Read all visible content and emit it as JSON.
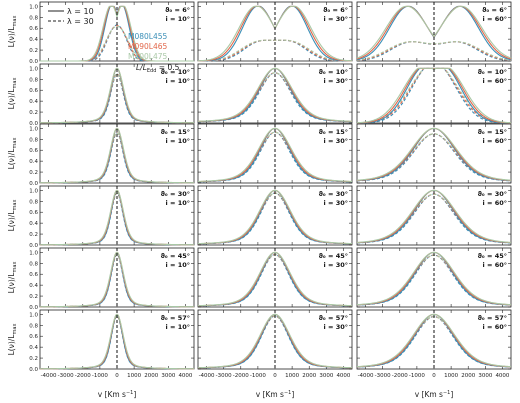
{
  "figure": {
    "ylabel_main": "L(ν)/L",
    "ylabel_sub": "max",
    "xlabel": "v [Km s",
    "xlabel_sup": "−1",
    "xlabel_end": "]"
  },
  "legend": {
    "line_styles": [
      {
        "label": "λ = 10",
        "style": "solid"
      },
      {
        "label": "λ = 30",
        "style": "dashed"
      }
    ],
    "models": [
      {
        "label": "M080L455",
        "color": "#3a8fb7"
      },
      {
        "label": "M090L465",
        "color": "#e2674a"
      },
      {
        "label": "M100L475",
        "color": "#a9c8a6"
      }
    ],
    "ratio_label": "L/L",
    "ratio_sub": "Edd",
    "ratio_value": " = 0.5"
  },
  "chart_data": {
    "type": "line",
    "description_of_grid": "6 rows (theta0) x 3 columns (inclination i)",
    "x_ticks": [
      -4000,
      -3000,
      -2000,
      -1000,
      0,
      1000,
      2000,
      3000,
      4000
    ],
    "x_tick_labels": [
      "-4000",
      "-3000",
      "-2000",
      "-1000",
      "0",
      "1000",
      "2000",
      "3000",
      "4000"
    ],
    "xlim": [
      -4500,
      4500
    ],
    "y_ticks": [
      0.0,
      0.2,
      0.4,
      0.6,
      0.8,
      1.0
    ],
    "y_tick_labels": [
      "0.0",
      "0.2",
      "0.4",
      "0.6",
      "0.8",
      "1.0"
    ],
    "ylim": [
      0.0,
      1.08
    ],
    "vertical_line_x": 0,
    "rows": [
      {
        "theta0_label": "ϑ₀ = 6°",
        "theta0": 6
      },
      {
        "theta0_label": "ϑ₀ = 10°",
        "theta0": 10
      },
      {
        "theta0_label": "ϑ₀ = 15°",
        "theta0": 15
      },
      {
        "theta0_label": "ϑ₀ = 30°",
        "theta0": 30
      },
      {
        "theta0_label": "ϑ₀ = 45°",
        "theta0": 45
      },
      {
        "theta0_label": "ϑ₀ = 57°",
        "theta0": 57
      }
    ],
    "columns": [
      {
        "incl_label": "i = 10°",
        "incl": 10
      },
      {
        "incl_label": "i = 30°",
        "incl": 30
      },
      {
        "incl_label": "i = 60°",
        "incl": 60
      }
    ],
    "series_colors": [
      "#3a8fb7",
      "#e2674a",
      "#a9c8a6"
    ],
    "panels": [
      {
        "row": 0,
        "col": 0,
        "profile": "double",
        "sep": [
          300,
          330,
          360
        ],
        "width": [
          420,
          440,
          460
        ],
        "dashed_peak": 0.62,
        "dashed_trough": 0.45
      },
      {
        "row": 0,
        "col": 1,
        "profile": "double",
        "sep": [
          1000,
          1050,
          1100
        ],
        "width": [
          900,
          950,
          1000
        ],
        "dashed_peak": 0.48,
        "dashed_trough": 0.42
      },
      {
        "row": 0,
        "col": 2,
        "profile": "double",
        "sep": [
          1500,
          1550,
          1600
        ],
        "width": [
          1100,
          1150,
          1200
        ],
        "dashed_peak": 0.5,
        "dashed_trough": 0.43
      },
      {
        "row": 1,
        "col": 0,
        "profile": "single",
        "width": [
          350,
          370,
          390
        ],
        "dashed_peak": 0.9
      },
      {
        "row": 1,
        "col": 1,
        "profile": "single",
        "width": [
          900,
          950,
          1000
        ],
        "dashed_peak": 0.92
      },
      {
        "row": 1,
        "col": 2,
        "profile": "double",
        "sep": [
          500,
          550,
          600
        ],
        "width": [
          1100,
          1150,
          1200
        ],
        "dashed_peak": 0.9,
        "dashed_trough": 0.82
      },
      {
        "row": 2,
        "col": 0,
        "profile": "single",
        "width": [
          340,
          360,
          380
        ],
        "dashed_peak": 0.92
      },
      {
        "row": 2,
        "col": 1,
        "profile": "single",
        "width": [
          850,
          900,
          950
        ],
        "dashed_peak": 0.93
      },
      {
        "row": 2,
        "col": 2,
        "profile": "single",
        "width": [
          1200,
          1250,
          1300
        ],
        "dashed_peak": 0.9
      },
      {
        "row": 3,
        "col": 0,
        "profile": "single",
        "width": [
          330,
          350,
          370
        ],
        "dashed_peak": 0.95
      },
      {
        "row": 3,
        "col": 1,
        "profile": "single",
        "width": [
          820,
          860,
          900
        ],
        "dashed_peak": 0.95
      },
      {
        "row": 3,
        "col": 2,
        "profile": "single",
        "width": [
          1150,
          1200,
          1250
        ],
        "dashed_peak": 0.93
      },
      {
        "row": 4,
        "col": 0,
        "profile": "single",
        "width": [
          330,
          350,
          370
        ],
        "dashed_peak": 0.96
      },
      {
        "row": 4,
        "col": 1,
        "profile": "single",
        "width": [
          800,
          840,
          880
        ],
        "dashed_peak": 0.96
      },
      {
        "row": 4,
        "col": 2,
        "profile": "single",
        "width": [
          1100,
          1150,
          1200
        ],
        "dashed_peak": 0.95
      },
      {
        "row": 5,
        "col": 0,
        "profile": "single",
        "width": [
          320,
          340,
          360
        ],
        "dashed_peak": 0.97
      },
      {
        "row": 5,
        "col": 1,
        "profile": "single",
        "width": [
          780,
          820,
          860
        ],
        "dashed_peak": 0.97
      },
      {
        "row": 5,
        "col": 2,
        "profile": "single",
        "width": [
          1100,
          1150,
          1200
        ],
        "dashed_peak": 0.96
      }
    ]
  }
}
